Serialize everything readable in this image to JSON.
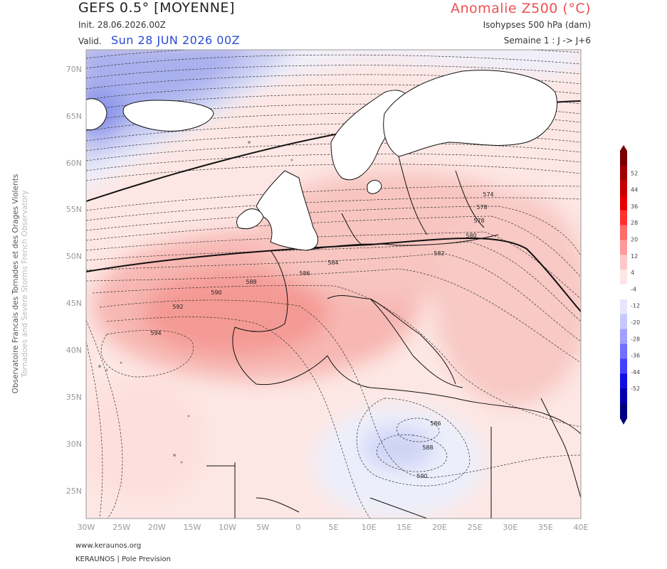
{
  "header": {
    "model": "GEFS 0.5° [MOYENNE]",
    "init": "Init.   28.06.2026.00Z",
    "valid_prefix": "Valid.",
    "valid_date": "Sun 28 JUN 2026 00Z",
    "product": "Anomalie Z500 (°C)",
    "isohypses": "Isohypses 500 hPa (dam)",
    "period": "Semaine 1 : J -> J+6"
  },
  "axes": {
    "latitudes": [
      "70N",
      "65N",
      "60N",
      "55N",
      "50N",
      "45N",
      "40N",
      "35N",
      "30N",
      "25N"
    ],
    "longitudes": [
      "30W",
      "25W",
      "20W",
      "15W",
      "10W",
      "5W",
      "0",
      "5E",
      "10E",
      "15E",
      "20E",
      "25E",
      "30E",
      "35E",
      "40E"
    ]
  },
  "colorbar": {
    "labels": [
      "52",
      "44",
      "36",
      "28",
      "20",
      "12",
      "4",
      "-4",
      "-12",
      "-20",
      "-28",
      "-36",
      "-44",
      "-52"
    ],
    "colors": [
      "#7a0000",
      "#a00000",
      "#c80000",
      "#e60000",
      "#ff3030",
      "#ff6a6a",
      "#ff9a9a",
      "#ffc8c8",
      "#ffe6e6",
      "#ffffff",
      "#e6e6ff",
      "#c8c8ff",
      "#a0a0ff",
      "#7070ff",
      "#4040ff",
      "#1010e0",
      "#0000b0",
      "#000080"
    ]
  },
  "contour_labels": [
    "574",
    "578",
    "578",
    "580",
    "582",
    "584",
    "586",
    "588",
    "590",
    "592",
    "594",
    "586",
    "588",
    "590"
  ],
  "credits": {
    "side_line1": "Observatoire Francais des Tornades et des Orages Violents",
    "side_line2": "Tornadoes and Severe Storms French Observatory",
    "url": "www.keraunos.org",
    "brand": "KERAUNOS | Pole Prevision"
  }
}
